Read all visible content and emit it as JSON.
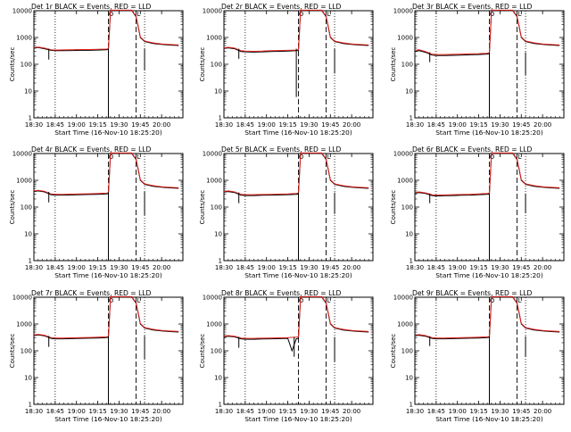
{
  "chart_data": {
    "type": "line",
    "scale": "log-y",
    "ylim": [
      1,
      10000
    ],
    "y_ticks": [
      1,
      10,
      100,
      1000,
      10000
    ],
    "x_tick_labels": [
      "18:30",
      "18:45",
      "19:00",
      "19:15",
      "19:30",
      "19:45",
      "20:00"
    ],
    "xlabel": "Start Time (16-Nov-10 18:25:20)",
    "ylabel": "Counts/sec",
    "legend_black": "BLACK = Events",
    "legend_red": "RED = LLD",
    "marker_labels": [
      "O",
      "L"
    ],
    "colors": {
      "events": "#000000",
      "lld": "#e0201b"
    },
    "panels": [
      {
        "title": "Det 1r BLACK = Events, RED = LLD",
        "events": {
          "x": [
            0,
            2,
            5,
            8,
            10,
            14,
            18,
            22,
            26,
            30,
            34,
            35
          ],
          "y": [
            400,
            420,
            380,
            330,
            320,
            320,
            325,
            330,
            330,
            340,
            350,
            360
          ]
        },
        "lld": {
          "x": [
            0,
            2,
            5,
            8,
            10,
            14,
            18,
            22,
            26,
            30,
            34,
            35
          ],
          "y": [
            420,
            440,
            400,
            350,
            340,
            345,
            350,
            355,
            355,
            360,
            370,
            380
          ]
        },
        "dips": [
          [
            7,
            150
          ],
          [
            35,
            1
          ]
        ],
        "after_dips": [
          [
            52,
            60
          ]
        ]
      },
      {
        "title": "Det 2r BLACK = Events, RED = LLD",
        "events": {
          "x": [
            0,
            2,
            5,
            8,
            10,
            14,
            18,
            22,
            26,
            30,
            34,
            35
          ],
          "y": [
            390,
            410,
            380,
            300,
            290,
            285,
            290,
            300,
            305,
            310,
            320,
            330
          ]
        },
        "lld": {
          "x": [
            0,
            2,
            5,
            8,
            10,
            14,
            18,
            22,
            26,
            30,
            34,
            35
          ],
          "y": [
            410,
            430,
            400,
            320,
            310,
            305,
            310,
            320,
            325,
            330,
            340,
            350
          ]
        },
        "dips": [
          [
            7,
            160
          ],
          [
            34,
            6
          ]
        ],
        "after_dips": [
          [
            52,
            45
          ]
        ]
      },
      {
        "title": "Det 3r BLACK = Events, RED = LLD",
        "events": {
          "x": [
            0,
            2,
            5,
            8,
            10,
            14,
            18,
            22,
            26,
            30,
            34,
            35
          ],
          "y": [
            300,
            320,
            280,
            220,
            210,
            210,
            215,
            220,
            225,
            230,
            240,
            250
          ]
        },
        "lld": {
          "x": [
            0,
            2,
            5,
            8,
            10,
            14,
            18,
            22,
            26,
            30,
            34,
            35
          ],
          "y": [
            330,
            350,
            300,
            240,
            230,
            230,
            235,
            240,
            245,
            250,
            260,
            270
          ]
        },
        "dips": [
          [
            7,
            120
          ],
          [
            35,
            1
          ]
        ],
        "after_dips": [
          [
            52,
            40
          ]
        ]
      },
      {
        "title": "Det 4r BLACK = Events, RED = LLD",
        "events": {
          "x": [
            0,
            2,
            5,
            8,
            10,
            14,
            18,
            22,
            26,
            30,
            34,
            35
          ],
          "y": [
            380,
            400,
            370,
            290,
            280,
            280,
            285,
            290,
            295,
            300,
            310,
            320
          ]
        },
        "lld": {
          "x": [
            0,
            2,
            5,
            8,
            10,
            14,
            18,
            22,
            26,
            30,
            34,
            35
          ],
          "y": [
            400,
            420,
            390,
            310,
            300,
            300,
            305,
            310,
            315,
            320,
            330,
            340
          ]
        },
        "dips": [
          [
            7,
            150
          ],
          [
            35,
            1
          ]
        ],
        "after_dips": [
          [
            52,
            50
          ]
        ]
      },
      {
        "title": "Det 5r BLACK = Events, RED = LLD",
        "events": {
          "x": [
            0,
            2,
            5,
            8,
            10,
            14,
            18,
            22,
            26,
            30,
            34,
            35
          ],
          "y": [
            360,
            380,
            350,
            280,
            270,
            270,
            275,
            280,
            285,
            290,
            300,
            310
          ]
        },
        "lld": {
          "x": [
            0,
            2,
            5,
            8,
            10,
            14,
            18,
            22,
            26,
            30,
            34,
            35
          ],
          "y": [
            380,
            400,
            370,
            300,
            290,
            290,
            295,
            300,
            305,
            310,
            320,
            330
          ]
        },
        "dips": [
          [
            7,
            140
          ],
          [
            35,
            1
          ]
        ],
        "after_dips": [
          [
            52,
            55
          ]
        ]
      },
      {
        "title": "Det 6r BLACK = Events, RED = LLD",
        "events": {
          "x": [
            0,
            2,
            5,
            8,
            10,
            14,
            18,
            22,
            26,
            30,
            34,
            35
          ],
          "y": [
            330,
            350,
            320,
            270,
            260,
            265,
            270,
            275,
            280,
            290,
            300,
            310
          ]
        },
        "lld": {
          "x": [
            0,
            2,
            5,
            8,
            10,
            14,
            18,
            22,
            26,
            30,
            34,
            35
          ],
          "y": [
            350,
            370,
            340,
            290,
            280,
            285,
            290,
            295,
            300,
            310,
            320,
            330
          ]
        },
        "dips": [
          [
            7,
            140
          ],
          [
            35,
            1
          ]
        ],
        "after_dips": [
          [
            52,
            60
          ]
        ]
      },
      {
        "title": "Det 7r BLACK = Events, RED = LLD",
        "events": {
          "x": [
            0,
            2,
            5,
            8,
            10,
            14,
            18,
            22,
            26,
            30,
            34,
            35
          ],
          "y": [
            370,
            390,
            360,
            290,
            280,
            280,
            285,
            290,
            295,
            300,
            310,
            320
          ]
        },
        "lld": {
          "x": [
            0,
            2,
            5,
            8,
            10,
            14,
            18,
            22,
            26,
            30,
            34,
            35
          ],
          "y": [
            390,
            410,
            380,
            310,
            300,
            300,
            305,
            310,
            315,
            320,
            330,
            340
          ]
        },
        "dips": [
          [
            7,
            140
          ],
          [
            35,
            1
          ]
        ],
        "after_dips": [
          [
            52,
            50
          ]
        ]
      },
      {
        "title": "Det 8r BLACK = Events, RED = LLD",
        "events": {
          "x": [
            0,
            2,
            5,
            8,
            10,
            14,
            18,
            22,
            26,
            30,
            32,
            34,
            35
          ],
          "y": [
            330,
            350,
            330,
            280,
            270,
            270,
            275,
            280,
            285,
            290,
            100,
            280,
            290
          ]
        },
        "lld": {
          "x": [
            0,
            2,
            5,
            8,
            10,
            14,
            18,
            22,
            26,
            30,
            34,
            35
          ],
          "y": [
            350,
            370,
            350,
            300,
            290,
            290,
            295,
            300,
            305,
            310,
            320,
            330
          ]
        },
        "dips": [
          [
            7,
            130
          ],
          [
            33,
            60
          ]
        ],
        "after_dips": [
          [
            52,
            40
          ]
        ]
      },
      {
        "title": "Det 9r BLACK = Events, RED = LLD",
        "events": {
          "x": [
            0,
            2,
            5,
            8,
            10,
            14,
            18,
            22,
            26,
            30,
            34,
            35
          ],
          "y": [
            360,
            380,
            350,
            290,
            280,
            280,
            285,
            290,
            295,
            300,
            310,
            320
          ]
        },
        "lld": {
          "x": [
            0,
            2,
            5,
            8,
            10,
            14,
            18,
            22,
            26,
            30,
            34,
            35
          ],
          "y": [
            380,
            400,
            370,
            310,
            300,
            300,
            305,
            310,
            315,
            320,
            330,
            340
          ]
        },
        "dips": [
          [
            7,
            150
          ],
          [
            35,
            1
          ]
        ],
        "after_dips": [
          [
            52,
            60
          ]
        ]
      }
    ],
    "flare": {
      "x": [
        35,
        36,
        37,
        38,
        40,
        44,
        46,
        48,
        49,
        50,
        52,
        56,
        60,
        64,
        68
      ],
      "y": [
        360,
        10000,
        10000,
        10000,
        10000,
        10000,
        10000,
        6000,
        2500,
        1000,
        700,
        600,
        550,
        520,
        500
      ]
    },
    "x_range": [
      0,
      70
    ],
    "x_ticks_at": [
      0,
      10,
      20,
      30,
      40,
      50,
      60
    ],
    "vlines_dotted": [
      10,
      52
    ],
    "vlines_dashed": [
      35,
      48
    ]
  }
}
